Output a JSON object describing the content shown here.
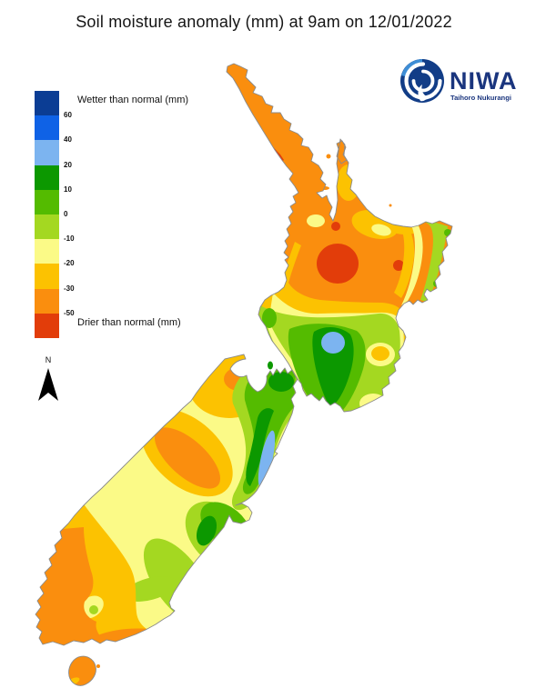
{
  "title": "Soil moisture anomaly (mm) at 9am on 12/01/2022",
  "logo": {
    "name": "NIWA",
    "subtitle": "Taihoro Nukurangi",
    "brand_color": "#1A357E",
    "swirl_dark": "#123D87",
    "swirl_light": "#3E8ED6",
    "swirl_white": "#FFFFFF"
  },
  "legend": {
    "wetter_label": "Wetter than normal (mm)",
    "drier_label": "Drier than normal (mm)",
    "tick_labels": [
      "60",
      "40",
      "20",
      "10",
      "0",
      "-10",
      "-20",
      "-30",
      "-50"
    ],
    "colors": [
      "#0B3D94",
      "#0F62E6",
      "#7CB4F0",
      "#0C9800",
      "#54BB00",
      "#A4D821",
      "#FBFA87",
      "#FCC201",
      "#FA8E0E",
      "#E23D0A"
    ]
  },
  "compass": {
    "label": "N",
    "arrow_color": "#000000"
  },
  "map": {
    "palette": {
      "navy": "#0B3D94",
      "blue": "#0F62E6",
      "light_blue": "#7CB4F0",
      "dark_green": "#0C9800",
      "green": "#54BB00",
      "yellow_green": "#A4D821",
      "pale_yellow": "#FBFA87",
      "gold": "#FCC201",
      "orange": "#FA8E0E",
      "red": "#E23D0A"
    },
    "coastline_color": "#8A8A8A",
    "sea_color": "#FFFFFF"
  }
}
